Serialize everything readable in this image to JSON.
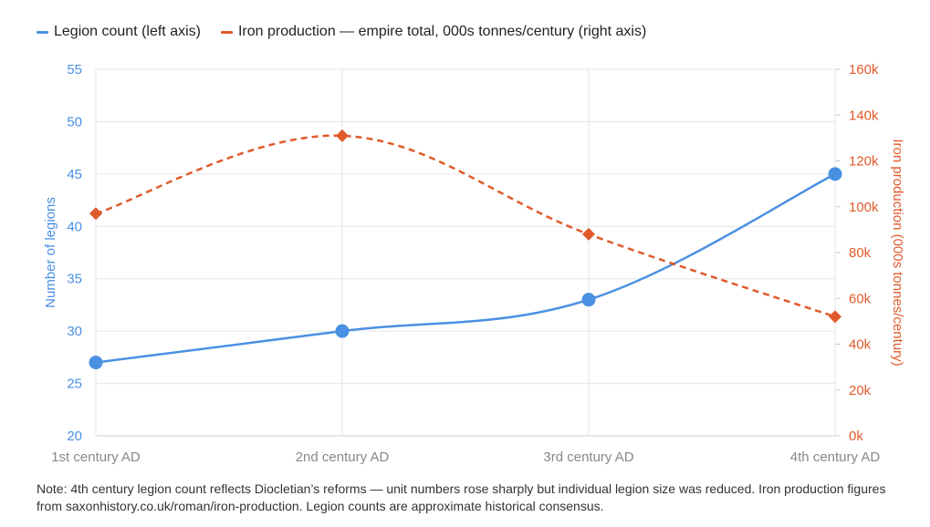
{
  "legend": {
    "series1_label": "Legion count (left axis)",
    "series2_label": "Iron production — empire total, 000s tonnes/century (right axis)"
  },
  "colors": {
    "legion": "#4a90e2",
    "iron": "#e05a2b",
    "grid": "#e6e6e6",
    "xtick": "#888888"
  },
  "note": "Note: 4th century legion count reflects Diocletian’s reforms — unit numbers rose sharply but individual legion size was reduced. Iron production figures from saxonhistory.co.uk/roman/iron-production. Legion counts are approximate historical consensus.",
  "chart_data": {
    "type": "line",
    "categories": [
      "1st century AD",
      "2nd century AD",
      "3rd century AD",
      "4th century AD"
    ],
    "series": [
      {
        "name": "Legion count (left axis)",
        "axis": "left",
        "values": [
          27,
          30,
          33,
          45
        ],
        "marker": "circle",
        "style": "solid"
      },
      {
        "name": "Iron production — empire total, 000s tonnes/century (right axis)",
        "axis": "right",
        "values": [
          97,
          131,
          88,
          52
        ],
        "marker": "diamond",
        "style": "dashed"
      }
    ],
    "y_left": {
      "label": "Number of legions",
      "range": [
        20,
        55
      ],
      "ticks": [
        "20",
        "25",
        "30",
        "35",
        "40",
        "45",
        "50",
        "55"
      ]
    },
    "y_right": {
      "label": "Iron production (000s tonnes/century)",
      "range": [
        0,
        160
      ],
      "ticks": [
        "0k",
        "20k",
        "40k",
        "60k",
        "80k",
        "100k",
        "120k",
        "140k",
        "160k"
      ]
    },
    "grid": true,
    "legend_position": "top-left"
  }
}
